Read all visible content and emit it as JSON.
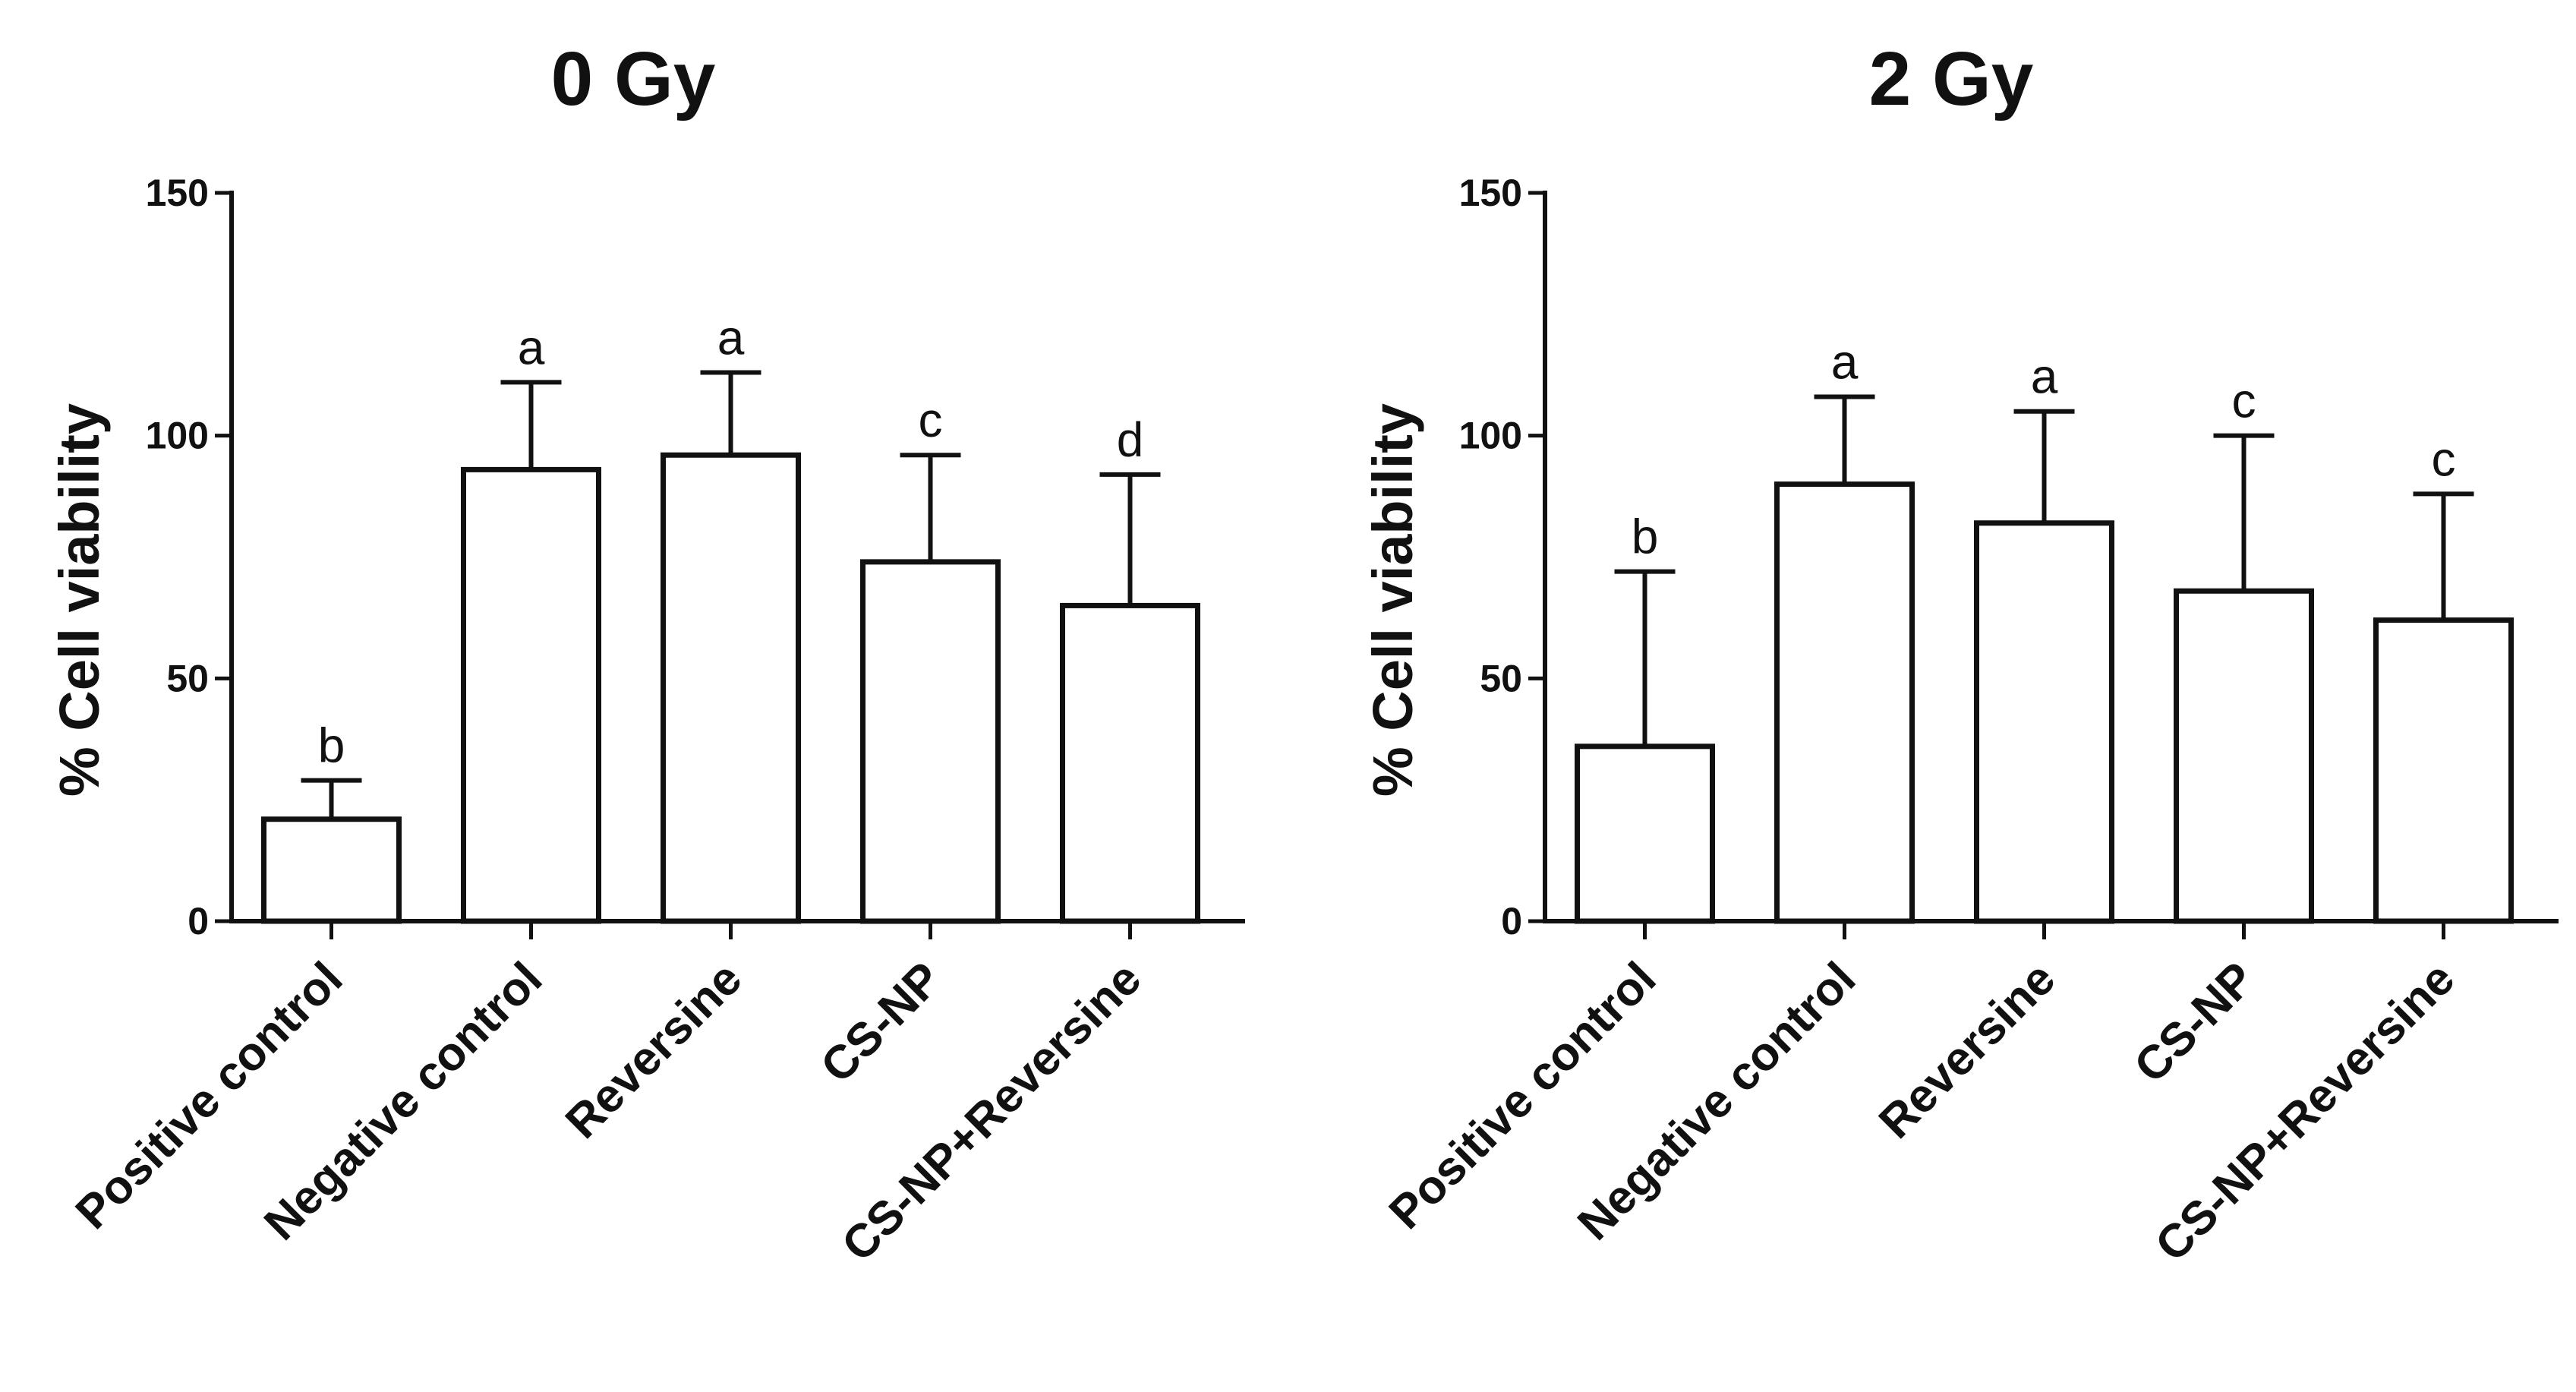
{
  "chart_data": [
    {
      "type": "bar",
      "title": "0 Gy",
      "xlabel": "",
      "ylabel": "% Cell viability",
      "ylim": [
        0,
        150
      ],
      "yticks": [
        0,
        50,
        100,
        150
      ],
      "categories": [
        "Positive control",
        "Negative control",
        "Reversine",
        "CS-NP",
        "CS-NP+Reversine"
      ],
      "values": [
        21,
        93,
        96,
        74,
        65
      ],
      "error_upper": [
        29,
        111,
        113,
        96,
        92
      ],
      "significance": [
        "b",
        "a",
        "a",
        "c",
        "d"
      ],
      "grid": false
    },
    {
      "type": "bar",
      "title": "2 Gy",
      "xlabel": "",
      "ylabel": "% Cell viability",
      "ylim": [
        0,
        150
      ],
      "yticks": [
        0,
        50,
        100,
        150
      ],
      "categories": [
        "Positive control",
        "Negative control",
        "Reversine",
        "CS-NP",
        "CS-NP+Reversine"
      ],
      "values": [
        36,
        90,
        82,
        68,
        62
      ],
      "error_upper": [
        72,
        108,
        105,
        100,
        88
      ],
      "significance": [
        "b",
        "a",
        "a",
        "c",
        "c"
      ],
      "grid": false
    }
  ]
}
